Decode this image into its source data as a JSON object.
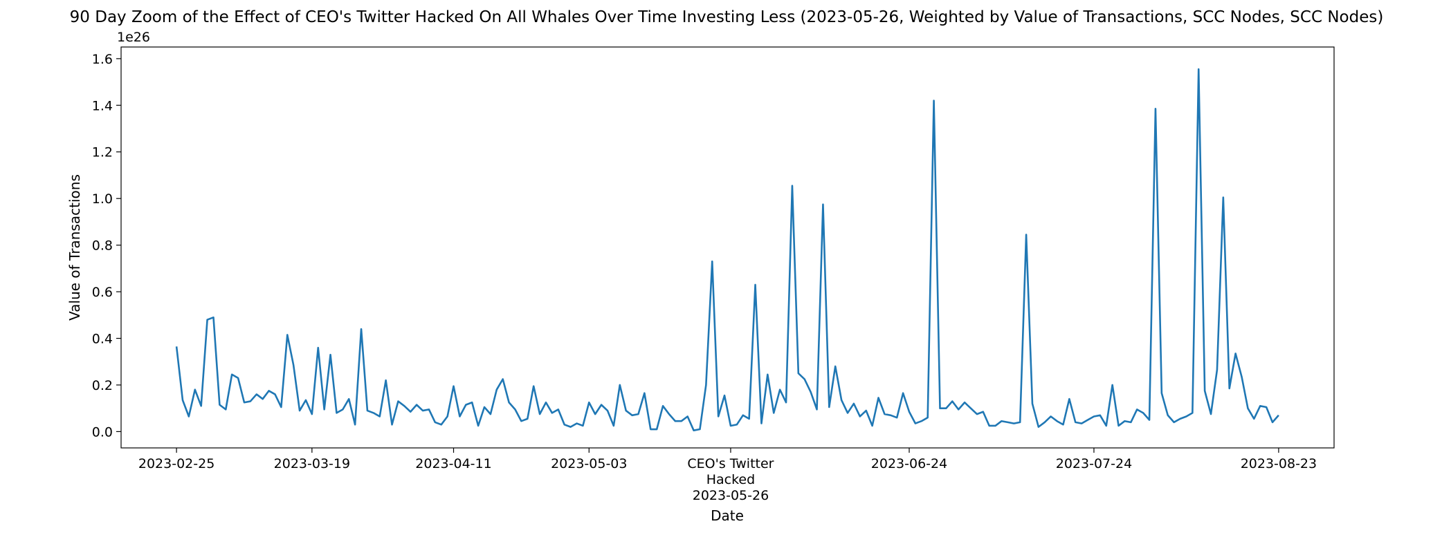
{
  "chart_data": {
    "type": "line",
    "title": "90 Day Zoom of the Effect of CEO's Twitter Hacked On All Whales Over Time Investing Less (2023-05-26, Weighted by Value of Transactions, SCC Nodes, SCC Nodes)",
    "xlabel": "Date",
    "ylabel": "Value of Transactions",
    "y_offset_label": "1e26",
    "y_scale": 1e+26,
    "ylim": [
      -0.07,
      1.65
    ],
    "yticks": [
      0.0,
      0.2,
      0.4,
      0.6,
      0.8,
      1.0,
      1.2,
      1.4,
      1.6
    ],
    "ytick_labels": [
      "0.0",
      "0.2",
      "0.4",
      "0.6",
      "0.8",
      "1.0",
      "1.2",
      "1.4",
      "1.6"
    ],
    "xlim": [
      "2023-02-16",
      "2023-08-32"
    ],
    "xticks": [
      {
        "date": "2023-02-25",
        "label": "2023-02-25"
      },
      {
        "date": "2023-03-19",
        "label": "2023-03-19"
      },
      {
        "date": "2023-04-11",
        "label": "2023-04-11"
      },
      {
        "date": "2023-05-03",
        "label": "2023-05-03"
      },
      {
        "date": "2023-05-26",
        "label": "CEO's Twitter\nHacked\n2023-05-26"
      },
      {
        "date": "2023-06-24",
        "label": "2023-06-24"
      },
      {
        "date": "2023-07-24",
        "label": "2023-07-24"
      },
      {
        "date": "2023-08-23",
        "label": "2023-08-23"
      }
    ],
    "grid": false,
    "legend": "none",
    "series": [
      {
        "color": "#1f77b4",
        "x_start": "2023-02-25",
        "x_step_days": 1,
        "values": [
          0.365,
          0.135,
          0.065,
          0.18,
          0.11,
          0.48,
          0.49,
          0.115,
          0.095,
          0.245,
          0.23,
          0.125,
          0.13,
          0.16,
          0.14,
          0.175,
          0.16,
          0.105,
          0.415,
          0.285,
          0.09,
          0.135,
          0.075,
          0.36,
          0.095,
          0.33,
          0.08,
          0.095,
          0.14,
          0.03,
          0.44,
          0.09,
          0.08,
          0.065,
          0.22,
          0.03,
          0.13,
          0.11,
          0.085,
          0.115,
          0.09,
          0.095,
          0.04,
          0.03,
          0.065,
          0.195,
          0.065,
          0.115,
          0.125,
          0.025,
          0.105,
          0.075,
          0.18,
          0.225,
          0.125,
          0.095,
          0.045,
          0.055,
          0.195,
          0.075,
          0.125,
          0.08,
          0.095,
          0.03,
          0.02,
          0.035,
          0.025,
          0.125,
          0.075,
          0.115,
          0.09,
          0.025,
          0.2,
          0.09,
          0.07,
          0.075,
          0.165,
          0.01,
          0.01,
          0.11,
          0.075,
          0.045,
          0.045,
          0.065,
          0.005,
          0.01,
          0.2,
          0.73,
          0.065,
          0.155,
          0.025,
          0.03,
          0.07,
          0.055,
          0.63,
          0.035,
          0.245,
          0.08,
          0.18,
          0.125,
          1.055,
          0.25,
          0.225,
          0.17,
          0.095,
          0.975,
          0.105,
          0.28,
          0.135,
          0.08,
          0.12,
          0.065,
          0.09,
          0.025,
          0.145,
          0.075,
          0.07,
          0.06,
          0.165,
          0.085,
          0.035,
          0.045,
          0.06,
          1.42,
          0.1,
          0.1,
          0.13,
          0.095,
          0.125,
          0.1,
          0.075,
          0.085,
          0.025,
          0.025,
          0.045,
          0.04,
          0.035,
          0.04,
          0.845,
          0.12,
          0.02,
          0.04,
          0.065,
          0.045,
          0.03,
          0.14,
          0.04,
          0.035,
          0.05,
          0.065,
          0.07,
          0.025,
          0.2,
          0.025,
          0.045,
          0.04,
          0.095,
          0.08,
          0.05,
          1.385,
          0.165,
          0.07,
          0.04,
          0.055,
          0.065,
          0.08,
          1.555,
          0.175,
          0.075,
          0.265,
          1.005,
          0.185,
          0.335,
          0.235,
          0.1,
          0.055,
          0.11,
          0.105,
          0.04,
          0.07
        ]
      }
    ]
  }
}
